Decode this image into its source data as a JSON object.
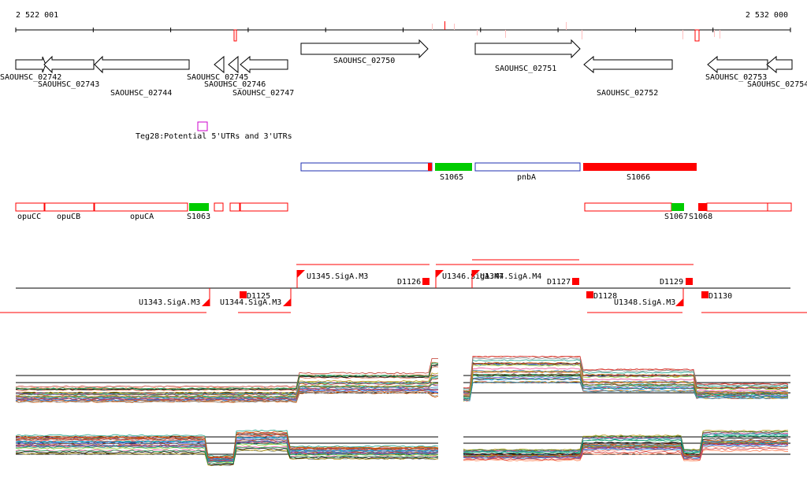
{
  "ruler": {
    "start_label": "2 522 001",
    "end_label": "2 532 000"
  },
  "genes": [
    {
      "id": "SAOUHSC_02742",
      "strand": "+"
    },
    {
      "id": "SAOUHSC_02743",
      "strand": "-"
    },
    {
      "id": "SAOUHSC_02744",
      "strand": "-"
    },
    {
      "id": "SAOUHSC_02745",
      "strand": "-"
    },
    {
      "id": "SAOUHSC_02746",
      "strand": "-"
    },
    {
      "id": "SAOUHSC_02747",
      "strand": "-"
    },
    {
      "id": "SAOUHSC_02750",
      "strand": "+"
    },
    {
      "id": "SAOUHSC_02751",
      "strand": "+"
    },
    {
      "id": "SAOUHSC_02752",
      "strand": "-"
    },
    {
      "id": "SAOUHSC_02753",
      "strand": "-"
    },
    {
      "id": "SAOUHSC_02754",
      "strand": "-"
    }
  ],
  "utr_track": {
    "label": "Teg28:Potential 5'UTRs and 3'UTRs",
    "color": "#cc00cc"
  },
  "segment_track": [
    {
      "label": "",
      "color": "#1f2fb0"
    },
    {
      "label": "S1065",
      "color": "#00cc00"
    },
    {
      "label": "pnbA",
      "color": "#1f2fb0"
    },
    {
      "label": "S1066",
      "color": "#ff0000"
    }
  ],
  "operon_track": [
    {
      "label": "opuCC"
    },
    {
      "label": "opuCB"
    },
    {
      "label": "opuCA"
    },
    {
      "label": "S1063"
    },
    {
      "label": "S1067"
    },
    {
      "label": "S1068"
    }
  ],
  "transcription_units": [
    {
      "label": "U1343.SigA.M3"
    },
    {
      "label": "U1344.SigA.M3"
    },
    {
      "label": "U1345.SigA.M3"
    },
    {
      "label": "U1346.SigA.M4"
    },
    {
      "label": "U1347.SigA.M4"
    },
    {
      "label": "U1348.SigA.M3"
    }
  ],
  "downshifts": [
    "D1125",
    "D1126",
    "D1127",
    "D1128",
    "D1129",
    "D1130"
  ],
  "colors": {
    "feature": "#ff0000",
    "green": "#00cc00",
    "blue": "#1f2fb0",
    "pink": "#ffc0c0",
    "magenta": "#cc00cc"
  }
}
